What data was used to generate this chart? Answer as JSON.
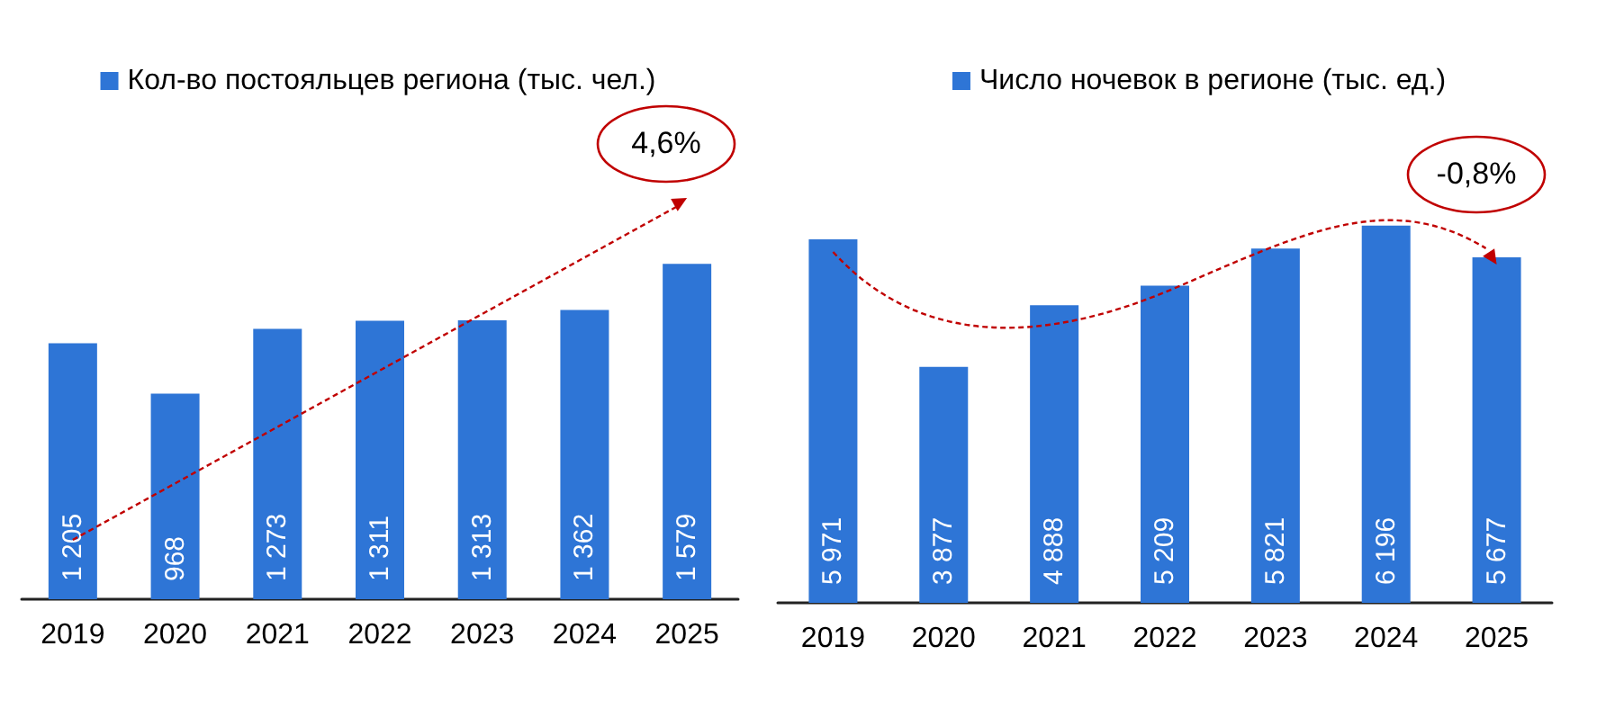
{
  "chart_data": [
    {
      "type": "bar",
      "categories": [
        "2019",
        "2020",
        "2021",
        "2022",
        "2023",
        "2024",
        "2025"
      ],
      "series": [
        {
          "name": "Кол-во постояльцев региона (тыс. чел.)",
          "color": "#2e75d6",
          "values": [
            1205,
            968,
            1273,
            1311,
            1313,
            1362,
            1579
          ],
          "value_labels": [
            "1 205",
            "968",
            "1 273",
            "1 311",
            "1 313",
            "1 362",
            "1 579"
          ]
        }
      ],
      "legend": "top",
      "annotations": [
        "4,6%"
      ]
    },
    {
      "type": "bar",
      "categories": [
        "2019",
        "2020",
        "2021",
        "2022",
        "2023",
        "2024",
        "2025"
      ],
      "series": [
        {
          "name": "Число ночевок в регионе (тыс. ед.)",
          "color": "#2e75d6",
          "values": [
            5971,
            3877,
            4888,
            5209,
            5821,
            6196,
            5677
          ],
          "value_labels": [
            "5 971",
            "3 877",
            "4 888",
            "5 209",
            "5 821",
            "6 196",
            "5 677"
          ]
        }
      ],
      "legend": "top",
      "annotations": [
        "-0,8%"
      ]
    }
  ]
}
